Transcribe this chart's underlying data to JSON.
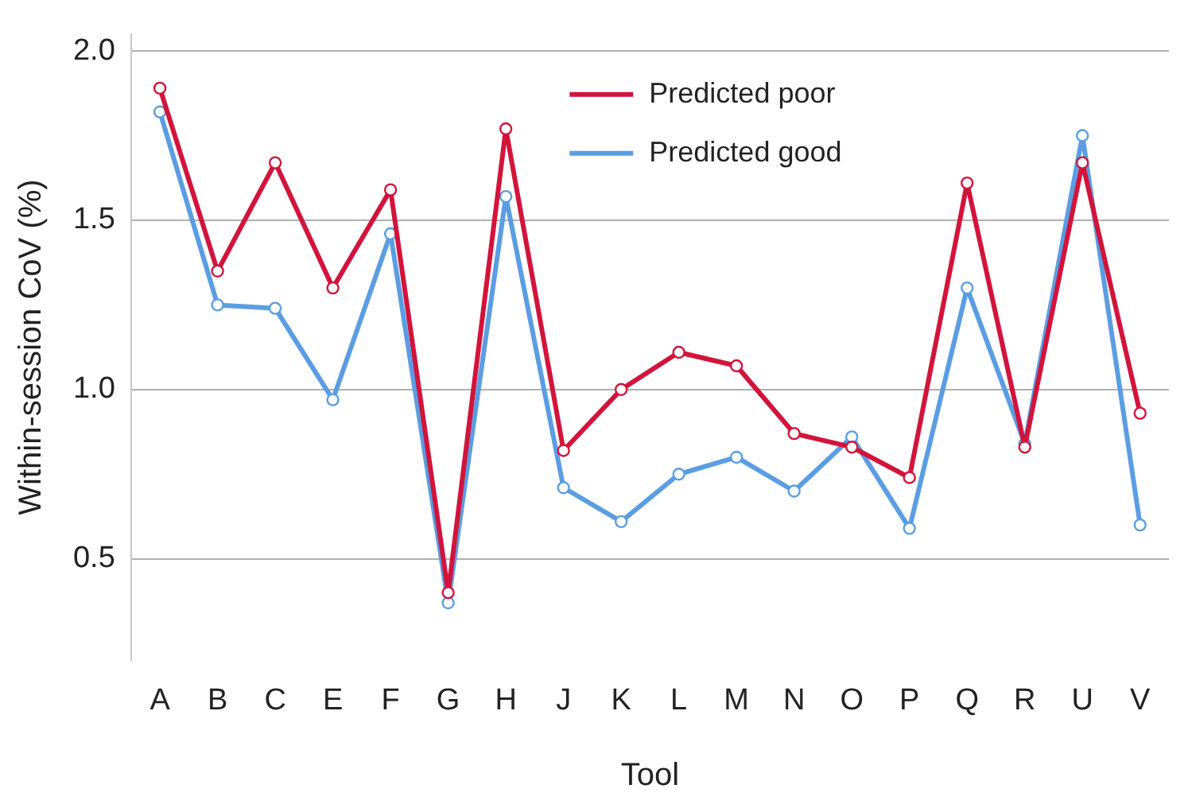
{
  "chart_data": {
    "type": "line",
    "xlabel": "Tool",
    "ylabel": "Within-session CoV (%)",
    "categories": [
      "A",
      "B",
      "C",
      "E",
      "F",
      "G",
      "H",
      "J",
      "K",
      "L",
      "M",
      "N",
      "O",
      "P",
      "Q",
      "R",
      "U",
      "V"
    ],
    "series": [
      {
        "name": "Predicted poor",
        "color": "#d2143c",
        "values": [
          1.89,
          1.35,
          1.67,
          1.3,
          1.59,
          0.4,
          1.77,
          0.82,
          1.0,
          1.11,
          1.07,
          0.87,
          0.83,
          0.74,
          1.61,
          0.83,
          1.67,
          0.93
        ]
      },
      {
        "name": "Predicted good",
        "color": "#5b9de2",
        "values": [
          1.82,
          1.25,
          1.24,
          0.97,
          1.46,
          0.37,
          1.57,
          0.71,
          0.61,
          0.75,
          0.8,
          0.7,
          0.86,
          0.59,
          1.3,
          0.84,
          1.75,
          0.6
        ]
      }
    ],
    "ylim": [
      0.2,
      2.05
    ],
    "yticks": [
      {
        "value": 0.5,
        "label": "0.5"
      },
      {
        "value": 1,
        "label": "1.0"
      },
      {
        "value": 1.5,
        "label": "1.5"
      },
      {
        "value": 2,
        "label": "2.0"
      }
    ],
    "grid": "y",
    "legend": "top",
    "marker": "circle",
    "line_style": "solid"
  }
}
